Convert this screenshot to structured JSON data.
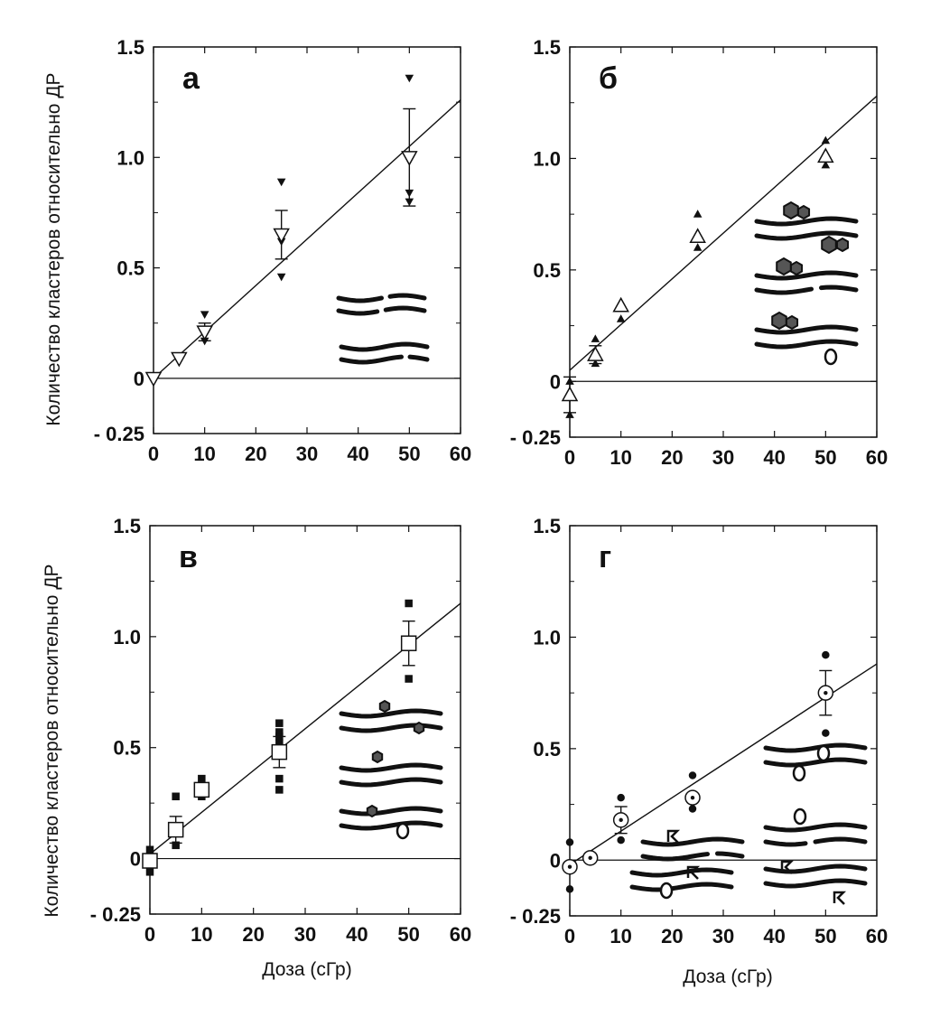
{
  "figure": {
    "ylabel": "Количество кластеров относительно ДР",
    "xlabel": "Доза (сГр)"
  },
  "chart_data": [
    {
      "type": "scatter",
      "panel": "а",
      "xlim": [
        0,
        60
      ],
      "ylim": [
        -0.25,
        1.5
      ],
      "x_ticks": [
        "0",
        "10",
        "20",
        "30",
        "40",
        "50",
        "60"
      ],
      "y_ticks": [
        "- 0.25",
        "0",
        "0.5",
        "1.0",
        "1.5"
      ],
      "marker": "triangle-down",
      "means": [
        {
          "x": 0,
          "y": 0.0
        },
        {
          "x": 5,
          "y": 0.09
        },
        {
          "x": 10,
          "y": 0.21,
          "err": 0.04
        },
        {
          "x": 25,
          "y": 0.65,
          "err": 0.11
        },
        {
          "x": 50,
          "y": 1.0,
          "err": 0.22
        }
      ],
      "points": [
        [
          0,
          0.0
        ],
        [
          5,
          0.08
        ],
        [
          10,
          0.29
        ],
        [
          10,
          0.17
        ],
        [
          25,
          0.89
        ],
        [
          25,
          0.62
        ],
        [
          25,
          0.46
        ],
        [
          50,
          1.36
        ],
        [
          50,
          0.84
        ],
        [
          50,
          0.8
        ]
      ],
      "fit": {
        "x0": 0,
        "y0": 0.0,
        "x1": 60,
        "y1": 1.26
      },
      "inset": "pairs-breaks"
    },
    {
      "type": "scatter",
      "panel": "б",
      "xlim": [
        0,
        60
      ],
      "ylim": [
        -0.25,
        1.5
      ],
      "x_ticks": [
        "0",
        "10",
        "20",
        "30",
        "40",
        "50",
        "60"
      ],
      "y_ticks": [
        "- 0.25",
        "0",
        "0.5",
        "1.0",
        "1.5"
      ],
      "marker": "triangle-up",
      "means": [
        {
          "x": 0,
          "y": -0.06,
          "err": 0.08
        },
        {
          "x": 5,
          "y": 0.12,
          "err": 0.04
        },
        {
          "x": 10,
          "y": 0.34
        },
        {
          "x": 25,
          "y": 0.65
        },
        {
          "x": 50,
          "y": 1.01
        }
      ],
      "points": [
        [
          0,
          0.0
        ],
        [
          0,
          -0.15
        ],
        [
          5,
          0.19
        ],
        [
          5,
          0.08
        ],
        [
          10,
          0.35
        ],
        [
          10,
          0.28
        ],
        [
          25,
          0.75
        ],
        [
          25,
          0.6
        ],
        [
          50,
          1.08
        ],
        [
          50,
          0.97
        ]
      ],
      "fit": {
        "x0": 0,
        "y0": 0.05,
        "x1": 60,
        "y1": 1.28
      },
      "inset": "oxidized-bases-clusters"
    },
    {
      "type": "scatter",
      "panel": "в",
      "xlim": [
        0,
        60
      ],
      "ylim": [
        -0.25,
        1.5
      ],
      "x_ticks": [
        "0",
        "10",
        "20",
        "30",
        "40",
        "50",
        "60"
      ],
      "y_ticks": [
        "- 0.25",
        "0",
        "0.5",
        "1.0",
        "1.5"
      ],
      "marker": "square",
      "means": [
        {
          "x": 0,
          "y": -0.01
        },
        {
          "x": 5,
          "y": 0.13,
          "err": 0.06
        },
        {
          "x": 10,
          "y": 0.31
        },
        {
          "x": 25,
          "y": 0.48,
          "err": 0.07
        },
        {
          "x": 50,
          "y": 0.97,
          "err": 0.1
        }
      ],
      "points": [
        [
          0,
          0.04
        ],
        [
          0,
          -0.06
        ],
        [
          5,
          0.28
        ],
        [
          5,
          0.06
        ],
        [
          10,
          0.36
        ],
        [
          10,
          0.28
        ],
        [
          25,
          0.61
        ],
        [
          25,
          0.57
        ],
        [
          25,
          0.55
        ],
        [
          25,
          0.52
        ],
        [
          25,
          0.36
        ],
        [
          25,
          0.31
        ],
        [
          50,
          1.15
        ],
        [
          50,
          0.81
        ]
      ],
      "fit": {
        "x0": 0,
        "y0": 0.02,
        "x1": 60,
        "y1": 1.15
      },
      "inset": "abasic-sites-clusters"
    },
    {
      "type": "scatter",
      "panel": "г",
      "xlim": [
        0,
        60
      ],
      "ylim": [
        -0.25,
        1.5
      ],
      "x_ticks": [
        "0",
        "10",
        "20",
        "30",
        "40",
        "50",
        "60"
      ],
      "y_ticks": [
        "- 0.25",
        "0",
        "0.5",
        "1.0",
        "1.5"
      ],
      "marker": "circle-dot",
      "means": [
        {
          "x": 0,
          "y": -0.03
        },
        {
          "x": 4,
          "y": 0.01
        },
        {
          "x": 10,
          "y": 0.18,
          "err": 0.06
        },
        {
          "x": 24,
          "y": 0.28
        },
        {
          "x": 50,
          "y": 0.75,
          "err": 0.1
        }
      ],
      "points": [
        [
          0,
          0.08
        ],
        [
          0,
          -0.13
        ],
        [
          10,
          0.28
        ],
        [
          10,
          0.09
        ],
        [
          24,
          0.38
        ],
        [
          24,
          0.23
        ],
        [
          50,
          0.92
        ],
        [
          50,
          0.57
        ]
      ],
      "fit": {
        "x0": 0,
        "y0": -0.02,
        "x1": 60,
        "y1": 0.88
      },
      "inset": "mixed-lesions-clusters"
    }
  ]
}
